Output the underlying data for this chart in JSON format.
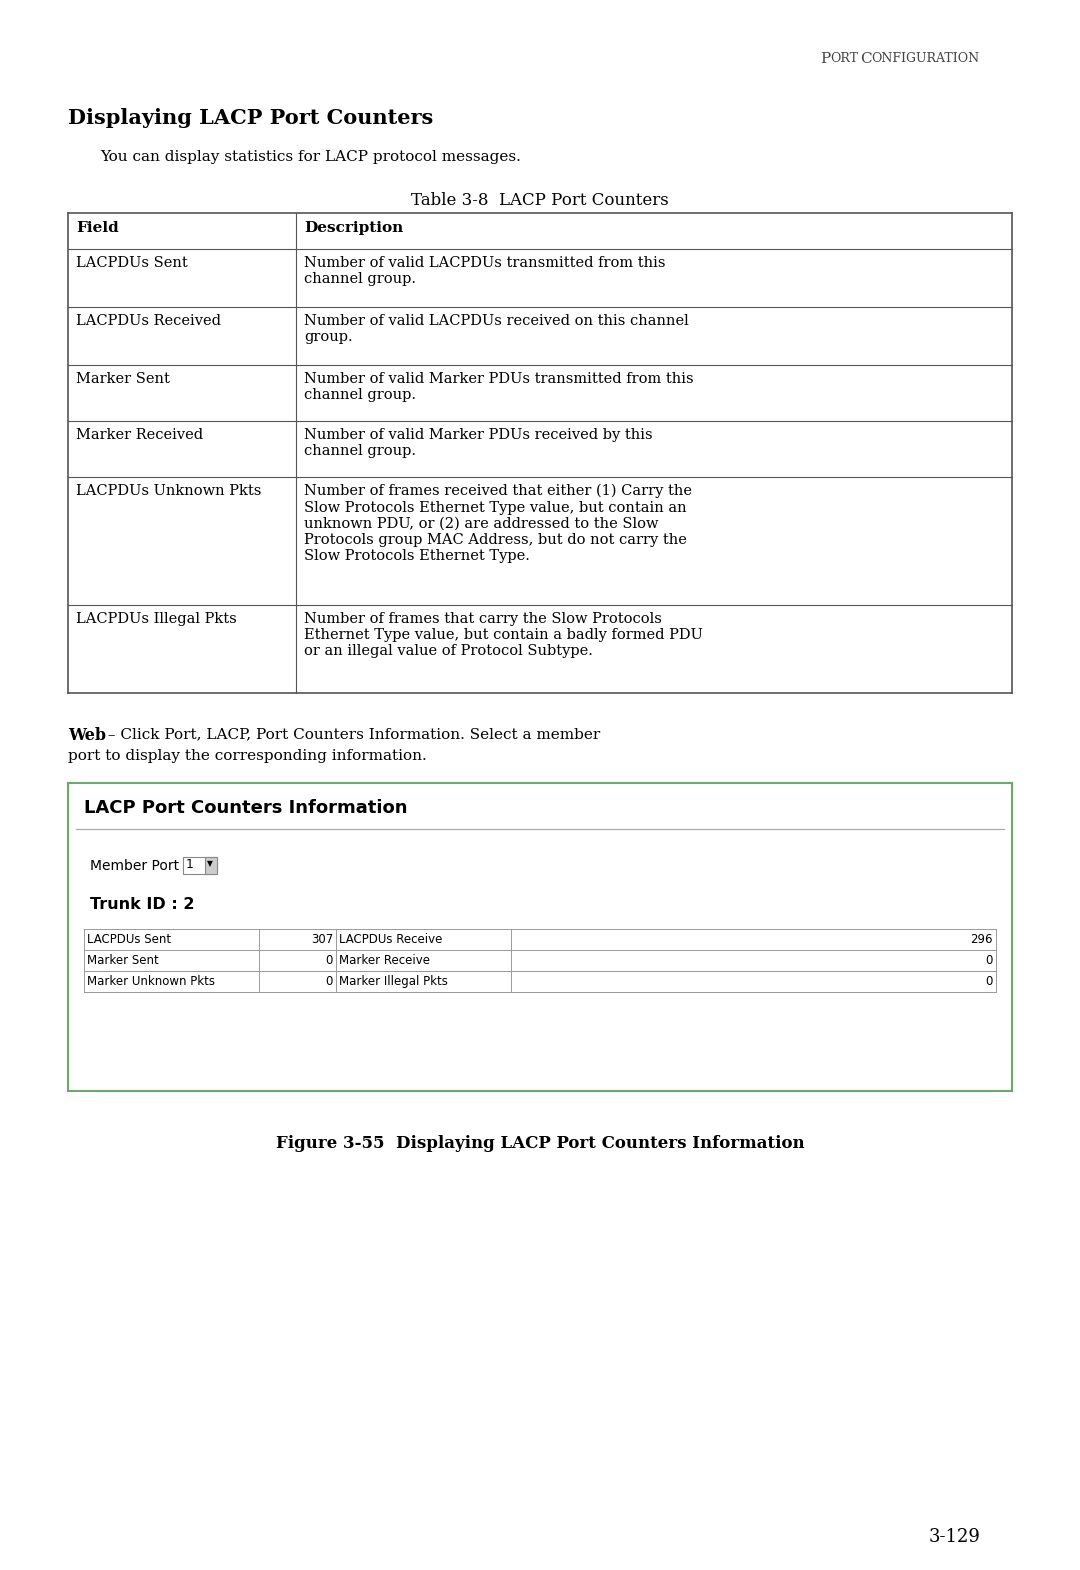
{
  "page_header_P": "P",
  "page_header_ORT": "ORT",
  "page_header_C": "C",
  "page_header_ONFIGURATION": "ONFIGURATION",
  "section_title": "Displaying LACP Port Counters",
  "intro_text": "You can display statistics for LACP protocol messages.",
  "table_title": "Table 3-8  LACP Port Counters",
  "table_header_field": "Field",
  "table_header_desc": "Description",
  "table_rows": [
    [
      "LACPDUs Sent",
      "Number of valid LACPDUs transmitted from this\nchannel group."
    ],
    [
      "LACPDUs Received",
      "Number of valid LACPDUs received on this channel\ngroup."
    ],
    [
      "Marker Sent",
      "Number of valid Marker PDUs transmitted from this\nchannel group."
    ],
    [
      "Marker Received",
      "Number of valid Marker PDUs received by this\nchannel group."
    ],
    [
      "LACPDUs Unknown Pkts",
      "Number of frames received that either (1) Carry the\nSlow Protocols Ethernet Type value, but contain an\nunknown PDU, or (2) are addressed to the Slow\nProtocols group MAC Address, but do not carry the\nSlow Protocols Ethernet Type."
    ],
    [
      "LACPDUs Illegal Pkts",
      "Number of frames that carry the Slow Protocols\nEthernet Type value, but contain a badly formed PDU\nor an illegal value of Protocol Subtype."
    ]
  ],
  "web_bold": "Web",
  "web_line1": " – Click Port, LACP, Port Counters Information. Select a member",
  "web_line2": "port to display the corresponding information.",
  "ui_box_title": "LACP Port Counters Information",
  "ui_member_port_label": "Member Port",
  "ui_member_port_value": "1",
  "ui_trunk_id": "Trunk ID : 2",
  "ui_table_rows": [
    [
      "LACPDUs Sent",
      "307",
      "LACPDUs Receive",
      "296"
    ],
    [
      "Marker Sent",
      "0",
      "Marker Receive",
      "0"
    ],
    [
      "Marker Unknown Pkts",
      "0",
      "Marker Illegal Pkts",
      "0"
    ]
  ],
  "figure_caption": "Figure 3-55  Displaying LACP Port Counters Information",
  "page_number": "3-129",
  "bg_color": "#ffffff",
  "text_color": "#000000",
  "table_border_color": "#555555",
  "ui_box_border_color": "#6aaa6a",
  "header_color": "#444444"
}
